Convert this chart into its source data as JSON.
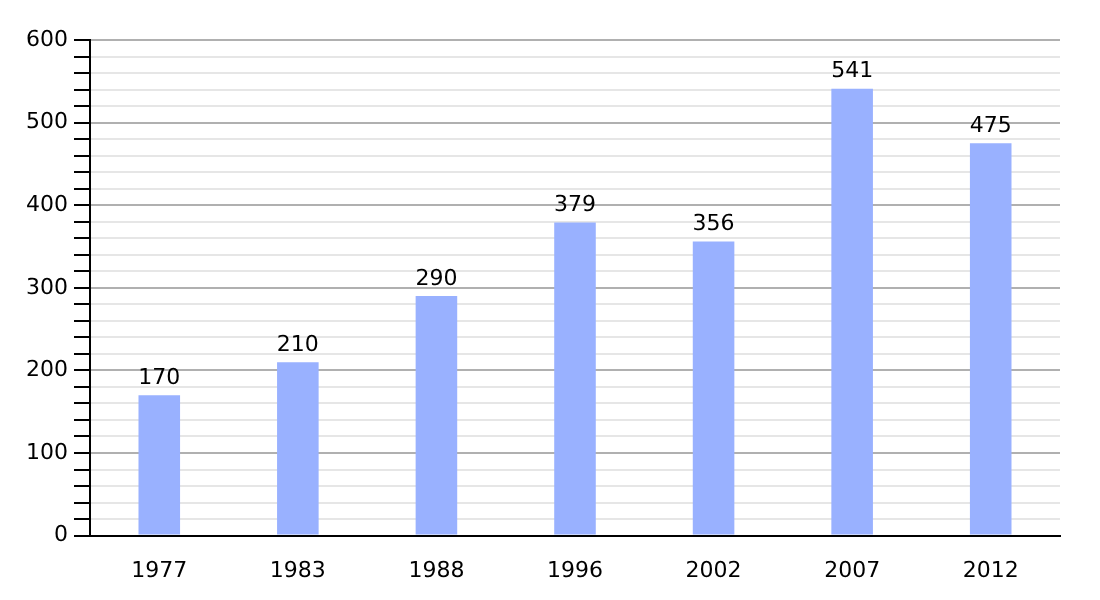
{
  "chart_data": {
    "type": "bar",
    "categories": [
      "1977",
      "1983",
      "1988",
      "1996",
      "2002",
      "2007",
      "2012"
    ],
    "values": [
      170,
      210,
      290,
      379,
      356,
      541,
      475
    ],
    "color": "#99b1ff",
    "ylim": [
      0,
      600
    ],
    "yticks": [
      0,
      {
        "value": 20,
        "label": null
      },
      {
        "value": 40,
        "label": null
      },
      {
        "value": 60,
        "label": null
      },
      {
        "value": 80,
        "label": null
      },
      100,
      {
        "value": 120,
        "label": null
      },
      {
        "value": 140,
        "label": null
      },
      {
        "value": 160,
        "label": null
      },
      {
        "value": 180,
        "label": null
      },
      200,
      {
        "value": 220,
        "label": null
      },
      {
        "value": 240,
        "label": null
      },
      {
        "value": 260,
        "label": null
      },
      {
        "value": 280,
        "label": null
      },
      300,
      {
        "value": 320,
        "label": null
      },
      {
        "value": 340,
        "label": null
      },
      {
        "value": 360,
        "label": null
      },
      {
        "value": 380,
        "label": null
      },
      400,
      {
        "value": 420,
        "label": null
      },
      {
        "value": 440,
        "label": null
      },
      {
        "value": 460,
        "label": null
      },
      {
        "value": 480,
        "label": null
      },
      500,
      {
        "value": 520,
        "label": null
      },
      {
        "value": 540,
        "label": null
      },
      {
        "value": 560,
        "label": null
      },
      {
        "value": 580,
        "label": null
      },
      600
    ],
    "grid": "y",
    "data_labels": true
  }
}
